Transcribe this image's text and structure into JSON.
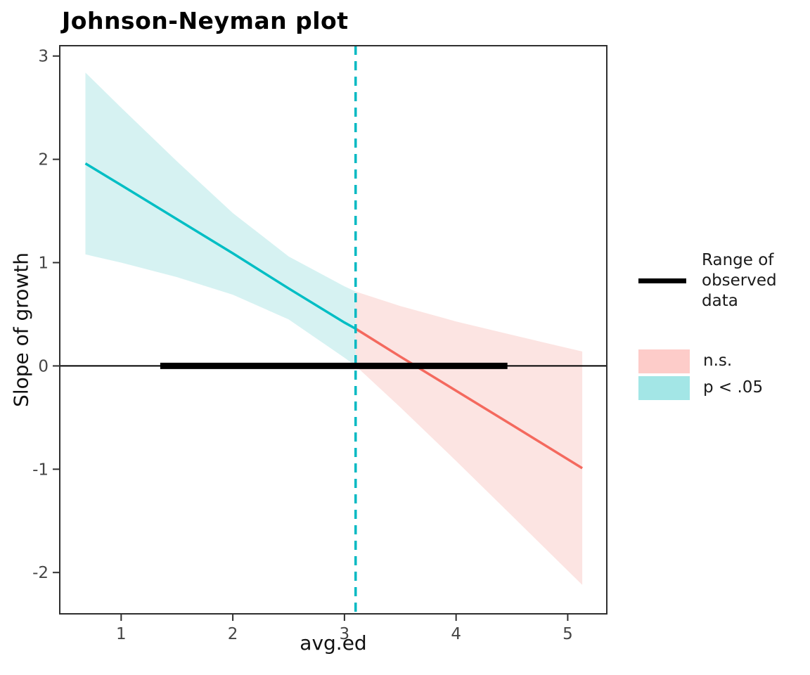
{
  "page": {
    "background": "#FFFFFF"
  },
  "chart_data": {
    "type": "line",
    "title": "Johnson-Neyman plot",
    "xlabel": "avg.ed",
    "ylabel": "Slope of growth",
    "xlim": [
      0.45,
      5.35
    ],
    "ylim": [
      -2.4,
      3.1
    ],
    "x_ticks": [
      1,
      2,
      3,
      4,
      5
    ],
    "y_ticks": [
      3,
      2,
      1,
      0,
      -1,
      -2
    ],
    "grid": false,
    "panel_border_color": "#2f2f2f",
    "tick_color": "#2f2f2f",
    "tick_label_color": "#454545",
    "jn_boundary": {
      "x": 3.1,
      "color": "#00B9C2",
      "style": "dashed"
    },
    "zero_line": {
      "y": 0,
      "color": "#000000"
    },
    "observed_data_range": {
      "x_start": 1.35,
      "x_end": 4.46,
      "y": 0,
      "color": "#000000"
    },
    "series": [
      {
        "name": "p < .05",
        "role": "significant-region",
        "line_color": "#00BEC4",
        "band_color": "#D6F2F2",
        "x": [
          0.68,
          1.0,
          1.5,
          2.0,
          2.5,
          3.0,
          3.1
        ],
        "line": [
          1.96,
          1.75,
          1.42,
          1.09,
          0.75,
          0.42,
          0.36
        ],
        "upper": [
          2.84,
          2.5,
          1.98,
          1.48,
          1.06,
          0.77,
          0.72
        ],
        "lower": [
          1.08,
          1.0,
          0.86,
          0.69,
          0.45,
          0.08,
          0.0
        ]
      },
      {
        "name": "n.s.",
        "role": "nonsignificant-region",
        "line_color": "#F4695E",
        "band_color": "#FCE4E2",
        "x": [
          3.1,
          3.5,
          4.0,
          4.5,
          5.13
        ],
        "line": [
          0.36,
          0.09,
          -0.24,
          -0.57,
          -0.99
        ],
        "upper": [
          0.72,
          0.58,
          0.43,
          0.3,
          0.14
        ],
        "lower": [
          0.0,
          -0.4,
          -0.92,
          -1.45,
          -2.12
        ]
      }
    ],
    "legend": {
      "position": "right",
      "items": [
        {
          "label": "Range of observed data",
          "swatch": "line",
          "color": "#000000"
        },
        {
          "label": "n.s.",
          "swatch": "rect",
          "color": "#FDCCC9"
        },
        {
          "label": "p < .05",
          "swatch": "rect",
          "color": "#A3E6E6"
        }
      ]
    }
  }
}
